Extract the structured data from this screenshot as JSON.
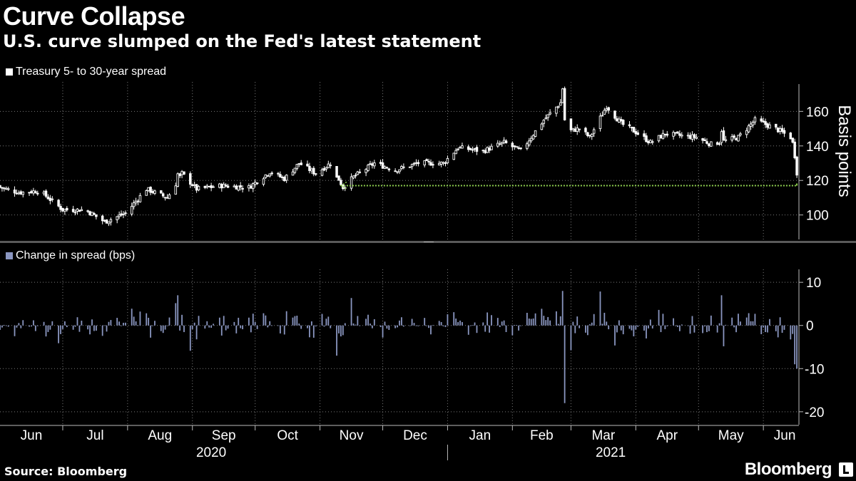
{
  "header": {
    "title": "Curve Collapse",
    "subtitle": "U.S. curve slumped on the Fed's latest statement"
  },
  "footer": {
    "source": "Source: Bloomberg",
    "brand": "Bloomberg"
  },
  "colors": {
    "background": "#000000",
    "candles": "#ffffff",
    "bars": "#8a96c0",
    "reference_line": "#8fd14f",
    "grid": "#7a7a7a",
    "divider": "#5a5a5a"
  },
  "chart_data": [
    {
      "type": "candlestick",
      "legend": "Treasury 5- to 30-year spread",
      "ylabel": "Basis points",
      "ylim": [
        85,
        175
      ],
      "yticks": [
        100,
        120,
        140,
        160
      ],
      "x_range": [
        "2020-06-01",
        "2021-06-18"
      ],
      "reference_line": {
        "value": 117,
        "from": "2020-11-11",
        "to": "2021-06-17"
      },
      "spread_path": [
        [
          "2020-06-01",
          116
        ],
        [
          "2020-06-10",
          113
        ],
        [
          "2020-06-20",
          114
        ],
        [
          "2020-07-01",
          103
        ],
        [
          "2020-07-12",
          103
        ],
        [
          "2020-07-21",
          96
        ],
        [
          "2020-07-31",
          101
        ],
        [
          "2020-08-10",
          115
        ],
        [
          "2020-08-20",
          110
        ],
        [
          "2020-08-27",
          124
        ],
        [
          "2020-09-03",
          115
        ],
        [
          "2020-09-15",
          117
        ],
        [
          "2020-09-28",
          116
        ],
        [
          "2020-10-08",
          125
        ],
        [
          "2020-10-15",
          121
        ],
        [
          "2020-10-22",
          130
        ],
        [
          "2020-10-30",
          124
        ],
        [
          "2020-11-06",
          130
        ],
        [
          "2020-11-12",
          116
        ],
        [
          "2020-11-17",
          122
        ],
        [
          "2020-11-27",
          130
        ],
        [
          "2020-12-07",
          126
        ],
        [
          "2020-12-18",
          130
        ],
        [
          "2020-12-30",
          130
        ],
        [
          "2021-01-06",
          139
        ],
        [
          "2021-01-18",
          137
        ],
        [
          "2021-01-28",
          142
        ],
        [
          "2021-02-05",
          137
        ],
        [
          "2021-02-16",
          155
        ],
        [
          "2021-02-24",
          165
        ],
        [
          "2021-02-26",
          148
        ],
        [
          "2021-03-05",
          150
        ],
        [
          "2021-03-10",
          145
        ],
        [
          "2021-03-18",
          163
        ],
        [
          "2021-03-25",
          153
        ],
        [
          "2021-04-01",
          148
        ],
        [
          "2021-04-08",
          142
        ],
        [
          "2021-04-15",
          147
        ],
        [
          "2021-04-30",
          145
        ],
        [
          "2021-05-07",
          141
        ],
        [
          "2021-05-20",
          145
        ],
        [
          "2021-05-28",
          155
        ],
        [
          "2021-06-07",
          150
        ],
        [
          "2021-06-14",
          145
        ],
        [
          "2021-06-16",
          138
        ],
        [
          "2021-06-17",
          121
        ]
      ]
    },
    {
      "type": "bar",
      "legend": "Change in spread (bps)",
      "ylim": [
        -23,
        13
      ],
      "yticks": [
        10,
        0,
        -10,
        -20
      ],
      "x_range": [
        "2020-06-01",
        "2021-06-18"
      ],
      "notable_values": [
        {
          "date": "2020-08-25",
          "value": 7
        },
        {
          "date": "2020-11-09",
          "value": -7
        },
        {
          "date": "2021-02-25",
          "value": 8
        },
        {
          "date": "2021-02-26",
          "value": -18
        },
        {
          "date": "2021-05-12",
          "value": 7
        },
        {
          "date": "2021-06-16",
          "value": -9
        },
        {
          "date": "2021-06-17",
          "value": -10
        }
      ]
    }
  ],
  "x_axis": {
    "months": [
      {
        "label": "Jun",
        "date": "2020-06-01"
      },
      {
        "label": "Jul",
        "date": "2020-07-01"
      },
      {
        "label": "Aug",
        "date": "2020-08-01"
      },
      {
        "label": "Sep",
        "date": "2020-09-01"
      },
      {
        "label": "Oct",
        "date": "2020-10-01"
      },
      {
        "label": "Nov",
        "date": "2020-11-01"
      },
      {
        "label": "Dec",
        "date": "2020-12-01"
      },
      {
        "label": "Jan",
        "date": "2021-01-01"
      },
      {
        "label": "Feb",
        "date": "2021-02-01"
      },
      {
        "label": "Mar",
        "date": "2021-03-01"
      },
      {
        "label": "Apr",
        "date": "2021-04-01"
      },
      {
        "label": "May",
        "date": "2021-05-01"
      },
      {
        "label": "Jun",
        "date": "2021-06-01"
      }
    ],
    "years": [
      {
        "label": "2020",
        "center": "2020-09-10"
      },
      {
        "label": "2021",
        "center": "2021-03-20"
      }
    ]
  }
}
